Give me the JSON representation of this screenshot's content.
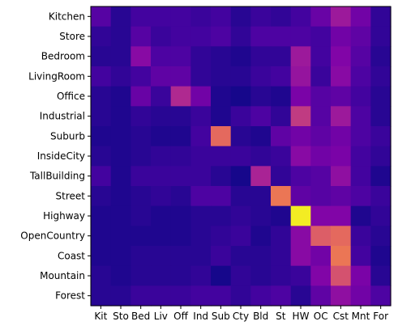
{
  "chart_data": {
    "type": "heatmap",
    "title": "",
    "xlabel": "",
    "ylabel": "",
    "colormap": "plasma",
    "value_range": [
      0,
      1
    ],
    "grid": false,
    "x_categories": [
      "Kit",
      "Sto",
      "Bed",
      "Liv",
      "Off",
      "Ind",
      "Sub",
      "Cty",
      "Bld",
      "St",
      "HW",
      "OC",
      "Cst",
      "Mnt",
      "For"
    ],
    "y_categories": [
      "Kitchen",
      "Store",
      "Bedroom",
      "LivingRoom",
      "Office",
      "Industrial",
      "Suburb",
      "InsideCity",
      "TallBuilding",
      "Street",
      "Highway",
      "OpenCountry",
      "Coast",
      "Mountain",
      "Forest"
    ],
    "values": [
      [
        0.16,
        0.06,
        0.12,
        0.12,
        0.12,
        0.1,
        0.12,
        0.06,
        0.1,
        0.08,
        0.12,
        0.2,
        0.34,
        0.22,
        0.08
      ],
      [
        0.08,
        0.06,
        0.16,
        0.1,
        0.12,
        0.12,
        0.14,
        0.08,
        0.14,
        0.14,
        0.14,
        0.12,
        0.22,
        0.18,
        0.08
      ],
      [
        0.06,
        0.06,
        0.28,
        0.14,
        0.14,
        0.08,
        0.06,
        0.04,
        0.08,
        0.08,
        0.34,
        0.12,
        0.26,
        0.16,
        0.06
      ],
      [
        0.12,
        0.08,
        0.12,
        0.18,
        0.18,
        0.08,
        0.06,
        0.06,
        0.1,
        0.12,
        0.32,
        0.1,
        0.28,
        0.14,
        0.08
      ],
      [
        0.06,
        0.04,
        0.2,
        0.1,
        0.4,
        0.22,
        0.04,
        0.02,
        0.06,
        0.04,
        0.24,
        0.16,
        0.18,
        0.12,
        0.06
      ],
      [
        0.06,
        0.04,
        0.08,
        0.06,
        0.06,
        0.1,
        0.04,
        0.1,
        0.14,
        0.08,
        0.46,
        0.16,
        0.34,
        0.14,
        0.06
      ],
      [
        0.04,
        0.04,
        0.06,
        0.04,
        0.04,
        0.12,
        0.62,
        0.06,
        0.04,
        0.18,
        0.22,
        0.18,
        0.22,
        0.14,
        0.1
      ],
      [
        0.06,
        0.04,
        0.06,
        0.08,
        0.08,
        0.1,
        0.1,
        0.1,
        0.08,
        0.1,
        0.28,
        0.22,
        0.24,
        0.12,
        0.08
      ],
      [
        0.12,
        0.04,
        0.1,
        0.1,
        0.1,
        0.1,
        0.06,
        0.02,
        0.38,
        0.08,
        0.14,
        0.16,
        0.3,
        0.12,
        0.04
      ],
      [
        0.06,
        0.04,
        0.06,
        0.08,
        0.06,
        0.14,
        0.14,
        0.06,
        0.06,
        0.66,
        0.18,
        0.16,
        0.18,
        0.14,
        0.1
      ],
      [
        0.04,
        0.04,
        0.06,
        0.04,
        0.04,
        0.06,
        0.06,
        0.08,
        0.06,
        0.04,
        0.97,
        0.26,
        0.26,
        0.04,
        0.08
      ],
      [
        0.04,
        0.04,
        0.04,
        0.04,
        0.04,
        0.06,
        0.08,
        0.1,
        0.04,
        0.08,
        0.28,
        0.58,
        0.62,
        0.1,
        0.06
      ],
      [
        0.04,
        0.04,
        0.06,
        0.06,
        0.06,
        0.06,
        0.1,
        0.06,
        0.06,
        0.08,
        0.28,
        0.22,
        0.66,
        0.12,
        0.04
      ],
      [
        0.06,
        0.04,
        0.06,
        0.06,
        0.06,
        0.08,
        0.02,
        0.08,
        0.06,
        0.08,
        0.1,
        0.26,
        0.54,
        0.24,
        0.06
      ],
      [
        0.06,
        0.06,
        0.1,
        0.1,
        0.1,
        0.12,
        0.12,
        0.08,
        0.12,
        0.14,
        0.06,
        0.18,
        0.3,
        0.22,
        0.14
      ]
    ]
  }
}
